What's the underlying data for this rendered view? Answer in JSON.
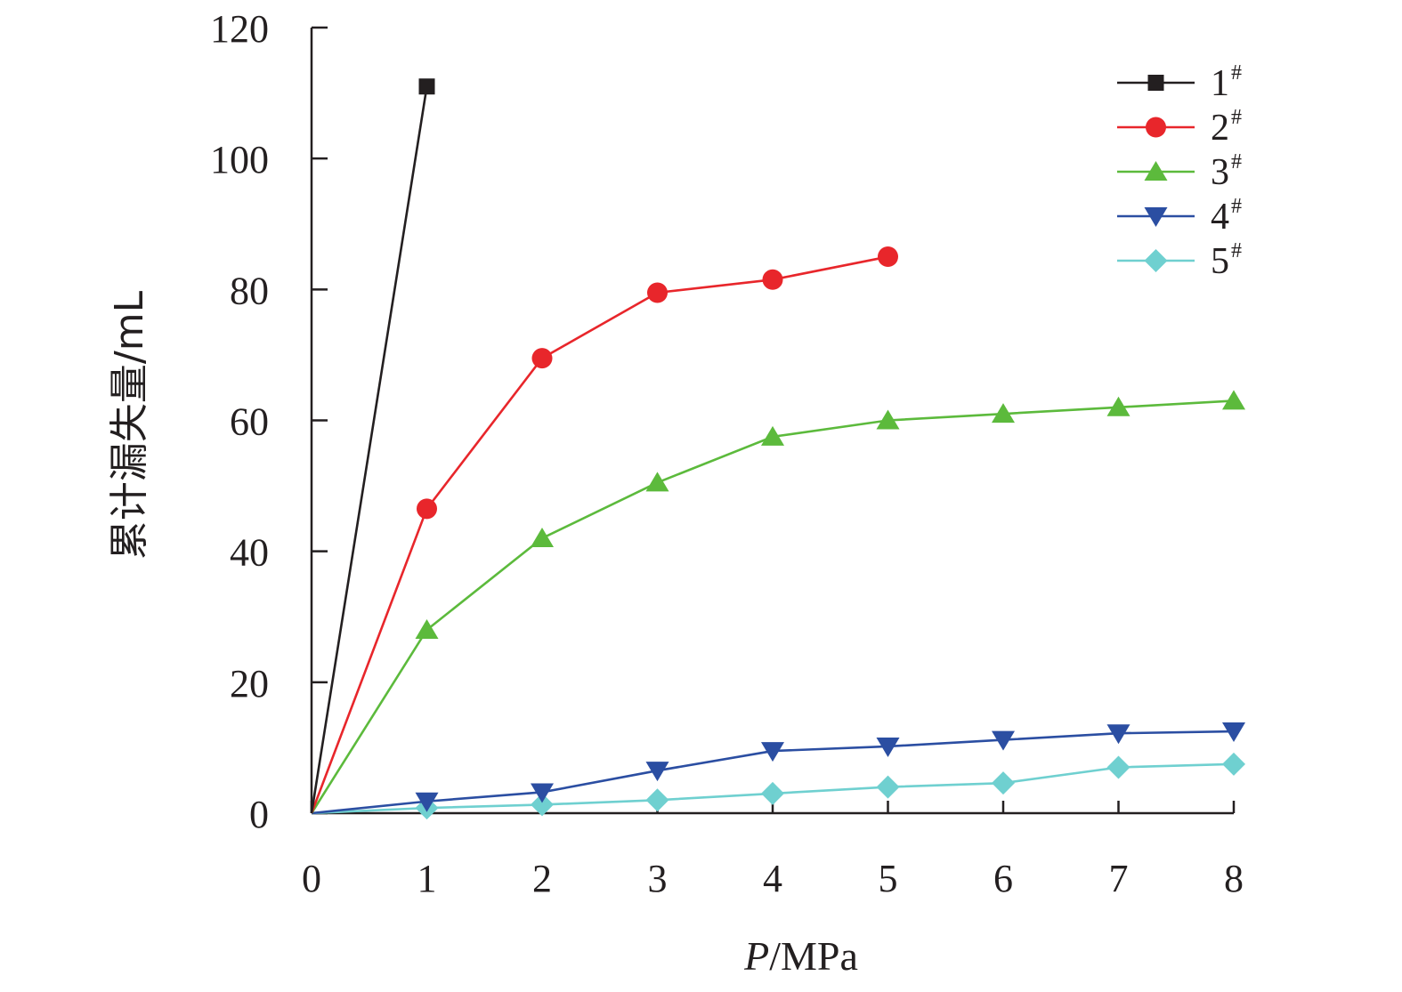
{
  "chart_data": {
    "type": "line",
    "xlabel_italic": "P",
    "xlabel_unit": "/MPa",
    "ylabel": "累计漏失量/mL",
    "xlim": [
      0,
      8
    ],
    "ylim": [
      0,
      120
    ],
    "x_ticks": [
      "0",
      "1",
      "2",
      "3",
      "4",
      "5",
      "6",
      "7",
      "8"
    ],
    "y_ticks": [
      "0",
      "20",
      "40",
      "60",
      "80",
      "100",
      "120"
    ],
    "grid": false,
    "legend_position": "top-right",
    "series": [
      {
        "name": "1",
        "sup": "#",
        "color": "#231f20",
        "marker": "square",
        "x": [
          0,
          1
        ],
        "y": [
          0,
          111
        ]
      },
      {
        "name": "2",
        "sup": "#",
        "color": "#e8262b",
        "marker": "circle",
        "x": [
          0,
          1,
          2,
          3,
          4,
          5
        ],
        "y": [
          0,
          46.5,
          69.5,
          79.5,
          81.5,
          85
        ]
      },
      {
        "name": "3",
        "sup": "#",
        "color": "#5cba3c",
        "marker": "triangle-up",
        "x": [
          0,
          1,
          2,
          3,
          4,
          5,
          6,
          7,
          8
        ],
        "y": [
          0,
          28,
          42,
          50.5,
          57.5,
          60,
          61,
          62,
          63
        ]
      },
      {
        "name": "4",
        "sup": "#",
        "color": "#2b4ea2",
        "marker": "triangle-down",
        "x": [
          0,
          1,
          2,
          3,
          4,
          5,
          6,
          7,
          8
        ],
        "y": [
          0,
          1.8,
          3.2,
          6.5,
          9.5,
          10.2,
          11.2,
          12.2,
          12.5
        ]
      },
      {
        "name": "5",
        "sup": "#",
        "color": "#6fd0d0",
        "marker": "diamond",
        "x": [
          0,
          1,
          2,
          3,
          4,
          5,
          6,
          7,
          8
        ],
        "y": [
          0,
          0.8,
          1.3,
          2,
          3,
          4,
          4.6,
          7,
          7.5
        ]
      }
    ]
  }
}
